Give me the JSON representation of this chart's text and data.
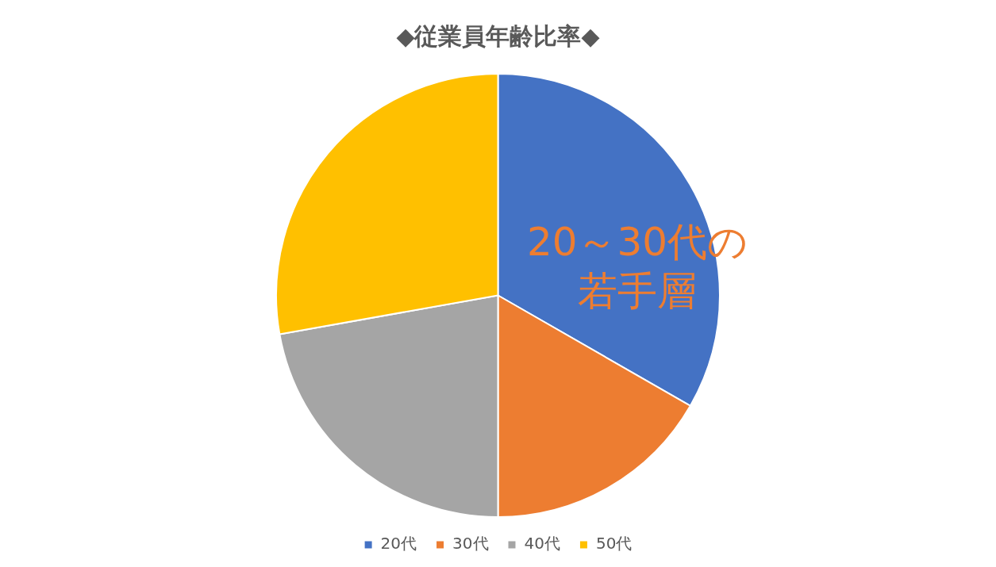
{
  "chart_data": {
    "type": "pie",
    "title": "◆従業員年齢比率◆",
    "categories": [
      "20代",
      "30代",
      "40代",
      "50代"
    ],
    "values": [
      33.3,
      16.7,
      22.2,
      27.8
    ],
    "colors": [
      "#4472c4",
      "#ed7d31",
      "#a5a5a5",
      "#ffc000"
    ],
    "legend": "bottom",
    "annotations": [
      "20～30代の",
      "若手層"
    ]
  }
}
